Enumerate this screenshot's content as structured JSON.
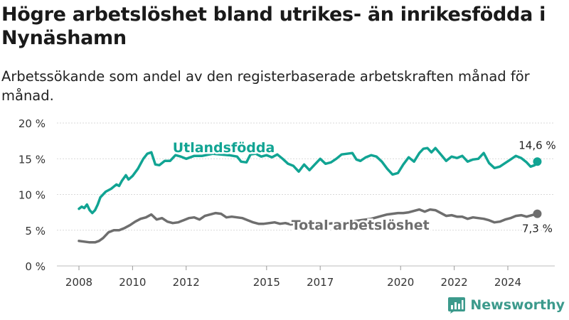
{
  "title": "Högre arbetslöshet bland utrikes- än inrikesfödda i Nynäshamn",
  "subtitle": "Arbetssökande som andel av den registerbaserade arbetskraften månad för månad.",
  "brand": {
    "name": "Newsworthy",
    "color": "#3c9a8c"
  },
  "chart_data": {
    "type": "line",
    "title": "Högre arbetslöshet bland utrikes- än inrikesfödda i Nynäshamn",
    "subtitle": "Arbetssökande som andel av den registerbaserade arbetskraften månad för månad.",
    "xlabel": "",
    "ylabel": "",
    "xlim": [
      2007.6,
      2025.4
    ],
    "ylim": [
      0,
      20
    ],
    "x_ticks": [
      2008,
      2010,
      2012,
      2015,
      2017,
      2020,
      2022,
      2024
    ],
    "x_tick_labels": [
      "2008",
      "2010",
      "2012",
      "2015",
      "2017",
      "2020",
      "2022",
      "2024"
    ],
    "y_ticks": [
      0,
      5,
      10,
      15,
      20
    ],
    "y_tick_labels": [
      "0 %",
      "5 %",
      "10 %",
      "15 %",
      "20 %"
    ],
    "grid": {
      "horizontal": true,
      "vertical": false
    },
    "legend": "inline labels",
    "series": [
      {
        "name": "Utlandsfödda",
        "color": "#11a493",
        "label_near_x": 2013.4,
        "end_value_label": "14,6 %",
        "points": [
          [
            2008.0,
            8.0
          ],
          [
            2008.1,
            8.3
          ],
          [
            2008.2,
            8.1
          ],
          [
            2008.3,
            8.6
          ],
          [
            2008.4,
            7.8
          ],
          [
            2008.5,
            7.4
          ],
          [
            2008.6,
            7.8
          ],
          [
            2008.7,
            8.6
          ],
          [
            2008.8,
            9.6
          ],
          [
            2008.9,
            10.0
          ],
          [
            2009.0,
            10.4
          ],
          [
            2009.2,
            10.8
          ],
          [
            2009.4,
            11.4
          ],
          [
            2009.5,
            11.2
          ],
          [
            2009.6,
            11.9
          ],
          [
            2009.75,
            12.7
          ],
          [
            2009.85,
            12.1
          ],
          [
            2010.0,
            12.6
          ],
          [
            2010.2,
            13.6
          ],
          [
            2010.4,
            15.0
          ],
          [
            2010.55,
            15.7
          ],
          [
            2010.7,
            15.9
          ],
          [
            2010.85,
            14.2
          ],
          [
            2011.0,
            14.1
          ],
          [
            2011.2,
            14.7
          ],
          [
            2011.4,
            14.7
          ],
          [
            2011.6,
            15.5
          ],
          [
            2011.8,
            15.3
          ],
          [
            2012.0,
            15.0
          ],
          [
            2012.3,
            15.4
          ],
          [
            2012.6,
            15.4
          ],
          [
            2013.0,
            15.7
          ],
          [
            2013.3,
            15.6
          ],
          [
            2013.6,
            15.5
          ],
          [
            2013.9,
            15.3
          ],
          [
            2014.05,
            14.6
          ],
          [
            2014.25,
            14.5
          ],
          [
            2014.4,
            15.6
          ],
          [
            2014.6,
            15.7
          ],
          [
            2014.8,
            15.3
          ],
          [
            2015.0,
            15.5
          ],
          [
            2015.2,
            15.2
          ],
          [
            2015.4,
            15.6
          ],
          [
            2015.6,
            15.0
          ],
          [
            2015.8,
            14.3
          ],
          [
            2016.0,
            14.0
          ],
          [
            2016.2,
            13.2
          ],
          [
            2016.4,
            14.2
          ],
          [
            2016.6,
            13.4
          ],
          [
            2016.8,
            14.2
          ],
          [
            2017.0,
            15.0
          ],
          [
            2017.2,
            14.3
          ],
          [
            2017.4,
            14.5
          ],
          [
            2017.6,
            15.0
          ],
          [
            2017.8,
            15.6
          ],
          [
            2018.0,
            15.7
          ],
          [
            2018.2,
            15.8
          ],
          [
            2018.35,
            14.9
          ],
          [
            2018.5,
            14.7
          ],
          [
            2018.7,
            15.2
          ],
          [
            2018.9,
            15.5
          ],
          [
            2019.1,
            15.3
          ],
          [
            2019.3,
            14.6
          ],
          [
            2019.5,
            13.6
          ],
          [
            2019.7,
            12.8
          ],
          [
            2019.9,
            13.0
          ],
          [
            2020.1,
            14.2
          ],
          [
            2020.3,
            15.2
          ],
          [
            2020.5,
            14.6
          ],
          [
            2020.7,
            15.8
          ],
          [
            2020.85,
            16.4
          ],
          [
            2021.0,
            16.5
          ],
          [
            2021.15,
            15.9
          ],
          [
            2021.3,
            16.5
          ],
          [
            2021.5,
            15.6
          ],
          [
            2021.7,
            14.7
          ],
          [
            2021.9,
            15.3
          ],
          [
            2022.1,
            15.1
          ],
          [
            2022.3,
            15.4
          ],
          [
            2022.5,
            14.6
          ],
          [
            2022.7,
            14.9
          ],
          [
            2022.9,
            15.0
          ],
          [
            2023.1,
            15.8
          ],
          [
            2023.3,
            14.4
          ],
          [
            2023.5,
            13.7
          ],
          [
            2023.7,
            13.9
          ],
          [
            2023.9,
            14.4
          ],
          [
            2024.1,
            14.9
          ],
          [
            2024.3,
            15.4
          ],
          [
            2024.5,
            15.1
          ],
          [
            2024.7,
            14.5
          ],
          [
            2024.85,
            13.9
          ],
          [
            2025.0,
            14.1
          ],
          [
            2025.1,
            14.6
          ]
        ]
      },
      {
        "name": "Total arbetslöshet",
        "color": "#6e6e6e",
        "label_near_x": 2018.5,
        "end_value_label": "7,3 %",
        "points": [
          [
            2008.0,
            3.5
          ],
          [
            2008.2,
            3.4
          ],
          [
            2008.4,
            3.3
          ],
          [
            2008.6,
            3.3
          ],
          [
            2008.75,
            3.5
          ],
          [
            2008.9,
            3.9
          ],
          [
            2009.1,
            4.7
          ],
          [
            2009.3,
            5.0
          ],
          [
            2009.5,
            5.0
          ],
          [
            2009.7,
            5.3
          ],
          [
            2009.9,
            5.7
          ],
          [
            2010.1,
            6.2
          ],
          [
            2010.3,
            6.6
          ],
          [
            2010.5,
            6.8
          ],
          [
            2010.7,
            7.2
          ],
          [
            2010.9,
            6.5
          ],
          [
            2011.1,
            6.7
          ],
          [
            2011.3,
            6.2
          ],
          [
            2011.5,
            6.0
          ],
          [
            2011.7,
            6.1
          ],
          [
            2011.9,
            6.4
          ],
          [
            2012.1,
            6.7
          ],
          [
            2012.3,
            6.8
          ],
          [
            2012.5,
            6.5
          ],
          [
            2012.7,
            7.0
          ],
          [
            2012.9,
            7.2
          ],
          [
            2013.1,
            7.4
          ],
          [
            2013.3,
            7.3
          ],
          [
            2013.5,
            6.8
          ],
          [
            2013.7,
            6.9
          ],
          [
            2013.9,
            6.8
          ],
          [
            2014.1,
            6.7
          ],
          [
            2014.3,
            6.4
          ],
          [
            2014.5,
            6.1
          ],
          [
            2014.7,
            5.9
          ],
          [
            2014.9,
            5.9
          ],
          [
            2015.1,
            6.0
          ],
          [
            2015.3,
            6.1
          ],
          [
            2015.5,
            5.9
          ],
          [
            2015.7,
            6.0
          ],
          [
            2015.9,
            5.8
          ],
          [
            2016.1,
            5.9
          ],
          [
            2016.3,
            5.6
          ],
          [
            2016.5,
            5.6
          ],
          [
            2016.7,
            5.5
          ],
          [
            2016.9,
            5.7
          ],
          [
            2017.1,
            5.8
          ],
          [
            2017.3,
            5.9
          ],
          [
            2017.5,
            6.0
          ],
          [
            2017.7,
            6.1
          ],
          [
            2017.9,
            6.1
          ],
          [
            2018.1,
            6.2
          ],
          [
            2018.3,
            6.3
          ],
          [
            2018.5,
            6.4
          ],
          [
            2018.7,
            6.5
          ],
          [
            2018.9,
            6.6
          ],
          [
            2019.1,
            6.8
          ],
          [
            2019.3,
            7.0
          ],
          [
            2019.5,
            7.2
          ],
          [
            2019.7,
            7.3
          ],
          [
            2019.9,
            7.4
          ],
          [
            2020.1,
            7.4
          ],
          [
            2020.3,
            7.5
          ],
          [
            2020.5,
            7.7
          ],
          [
            2020.7,
            7.9
          ],
          [
            2020.9,
            7.6
          ],
          [
            2021.1,
            7.9
          ],
          [
            2021.3,
            7.8
          ],
          [
            2021.5,
            7.4
          ],
          [
            2021.7,
            7.0
          ],
          [
            2021.9,
            7.1
          ],
          [
            2022.1,
            6.9
          ],
          [
            2022.3,
            6.9
          ],
          [
            2022.5,
            6.6
          ],
          [
            2022.7,
            6.8
          ],
          [
            2022.9,
            6.7
          ],
          [
            2023.1,
            6.6
          ],
          [
            2023.3,
            6.4
          ],
          [
            2023.5,
            6.1
          ],
          [
            2023.7,
            6.2
          ],
          [
            2023.9,
            6.5
          ],
          [
            2024.1,
            6.7
          ],
          [
            2024.3,
            7.0
          ],
          [
            2024.5,
            7.1
          ],
          [
            2024.7,
            6.9
          ],
          [
            2024.9,
            7.1
          ],
          [
            2025.1,
            7.3
          ]
        ]
      }
    ]
  }
}
